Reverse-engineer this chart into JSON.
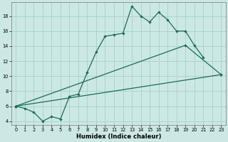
{
  "xlabel": "Humidex (Indice chaleur)",
  "bg_color": "#cce8e4",
  "grid_color": "#aad4ce",
  "line_color": "#1a6b5a",
  "x_min": -0.5,
  "x_max": 23.5,
  "y_min": 3.5,
  "y_max": 19.8,
  "yticks": [
    4,
    6,
    8,
    10,
    12,
    14,
    16,
    18
  ],
  "xticks": [
    0,
    1,
    2,
    3,
    4,
    5,
    6,
    7,
    8,
    9,
    10,
    11,
    12,
    13,
    14,
    15,
    16,
    17,
    18,
    19,
    20,
    21,
    22,
    23
  ],
  "line1_x": [
    0,
    1,
    2,
    3,
    4,
    5,
    6,
    7,
    8,
    9,
    10,
    11,
    12,
    13,
    14,
    15,
    16,
    17,
    18,
    19,
    20,
    21
  ],
  "line1_y": [
    6.0,
    5.7,
    5.2,
    4.0,
    4.6,
    4.3,
    7.3,
    7.6,
    10.5,
    13.2,
    15.3,
    15.5,
    15.7,
    19.3,
    18.0,
    17.2,
    18.5,
    17.5,
    16.0,
    16.0,
    14.1,
    12.5
  ],
  "line2_x": [
    0,
    23
  ],
  "line2_y": [
    6.0,
    10.2
  ],
  "line3_x": [
    0,
    19,
    23
  ],
  "line3_y": [
    6.0,
    14.1,
    10.2
  ]
}
